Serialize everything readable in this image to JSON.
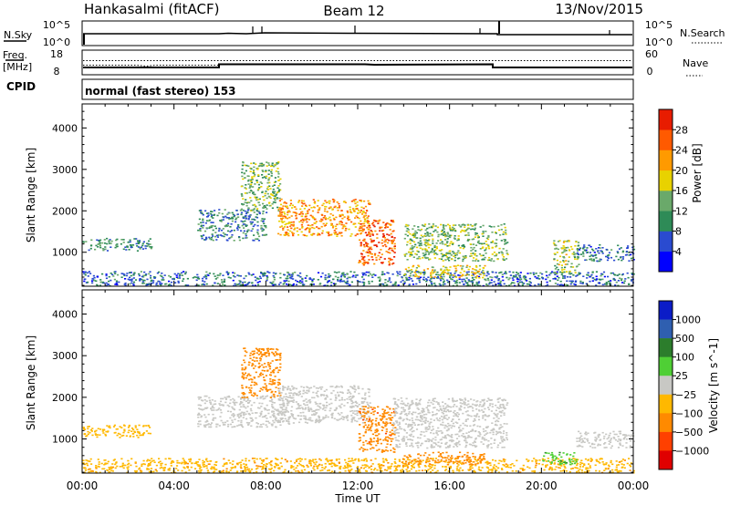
{
  "header": {
    "radar": "Hankasalmi (fitACF)",
    "beam": "Beam 12",
    "date": "13/Nov/2015"
  },
  "params": {
    "nsky_label": "N.Sky",
    "nsearch_label": "N.Search",
    "freq_label_1": "Freq.",
    "freq_label_2": "[MHz]",
    "nave_label": "Nave",
    "cpid_label": "CPID",
    "cpid_text": "normal (fast stereo) 153",
    "noise_ticks": [
      "10^5",
      "10^0"
    ],
    "freq_ticks": [
      "18",
      "8"
    ],
    "nave_ticks": [
      "60",
      "0"
    ]
  },
  "colors": {
    "power": [
      "#0000ff",
      "#2a4bd0",
      "#2e8b57",
      "#6aa96a",
      "#e8d200",
      "#ff9a00",
      "#ff5a00",
      "#e81c00"
    ],
    "velocity": [
      "#0b1cc7",
      "#2f5fb0",
      "#2c7d2c",
      "#4fcf35",
      "#c8c8c4",
      "#ffb800",
      "#ff8a00",
      "#ff4000",
      "#e00000"
    ]
  },
  "chart_data": [
    {
      "type": "heatmap",
      "title": "Power",
      "xlabel": "Time UT",
      "ylabel": "Slant Range [km]",
      "colorbar_label": "Power [dB]",
      "x_ticks": [
        "00:00",
        "04:00",
        "08:00",
        "12:00",
        "16:00",
        "20:00",
        "00:00"
      ],
      "y_ticks": [
        1000,
        2000,
        3000,
        4000
      ],
      "xlim": [
        0,
        24
      ],
      "ylim": [
        180,
        4580
      ],
      "colorbar_ticks": [
        "4",
        "8",
        "12",
        "16",
        "20",
        "24",
        "28"
      ],
      "clim": [
        0,
        32
      ],
      "regions": [
        {
          "t0": 0.0,
          "t1": 3.0,
          "r0": 1050,
          "r1": 1350,
          "value": 10
        },
        {
          "t0": 0.0,
          "t1": 24.0,
          "r0": 200,
          "r1": 550,
          "value": 8
        },
        {
          "t0": 5.0,
          "t1": 8.0,
          "r0": 1300,
          "r1": 2050,
          "value": 9
        },
        {
          "t0": 6.9,
          "t1": 8.6,
          "r0": 2000,
          "r1": 3200,
          "value": 14
        },
        {
          "t0": 8.5,
          "t1": 12.5,
          "r0": 1400,
          "r1": 2300,
          "value": 22
        },
        {
          "t0": 12.0,
          "t1": 13.6,
          "r0": 700,
          "r1": 1800,
          "value": 26
        },
        {
          "t0": 14.0,
          "t1": 18.5,
          "r0": 800,
          "r1": 1700,
          "value": 14
        },
        {
          "t0": 14.0,
          "t1": 17.5,
          "r0": 400,
          "r1": 700,
          "value": 18
        },
        {
          "t0": 20.5,
          "t1": 21.6,
          "r0": 500,
          "r1": 1300,
          "value": 16
        },
        {
          "t0": 21.5,
          "t1": 24.0,
          "r0": 800,
          "r1": 1200,
          "value": 8
        }
      ]
    },
    {
      "type": "heatmap",
      "title": "Velocity",
      "xlabel": "Time UT",
      "ylabel": "Slant Range [km]",
      "colorbar_label": "Velocity [m s^-1]",
      "x_ticks": [
        "00:00",
        "04:00",
        "08:00",
        "12:00",
        "16:00",
        "20:00",
        "00:00"
      ],
      "y_ticks": [
        1000,
        2000,
        3000,
        4000
      ],
      "xlim": [
        0,
        24
      ],
      "ylim": [
        180,
        4580
      ],
      "colorbar_ticks": [
        "1000",
        "500",
        "100",
        "25",
        "−25",
        "−100",
        "−500",
        "−1000"
      ],
      "regions": [
        {
          "t0": 0.0,
          "t1": 3.0,
          "r0": 1050,
          "r1": 1350,
          "value": -50
        },
        {
          "t0": 0.0,
          "t1": 24.0,
          "r0": 200,
          "r1": 550,
          "value": -80
        },
        {
          "t0": 5.0,
          "t1": 9.0,
          "r0": 1300,
          "r1": 2050,
          "value": 0
        },
        {
          "t0": 6.9,
          "t1": 8.6,
          "r0": 2000,
          "r1": 3200,
          "value": -300
        },
        {
          "t0": 8.5,
          "t1": 12.5,
          "r0": 1400,
          "r1": 2300,
          "value": 0
        },
        {
          "t0": 12.0,
          "t1": 13.6,
          "r0": 700,
          "r1": 1800,
          "value": -400
        },
        {
          "t0": 13.5,
          "t1": 18.5,
          "r0": 800,
          "r1": 2000,
          "value": 0
        },
        {
          "t0": 14.0,
          "t1": 17.5,
          "r0": 400,
          "r1": 700,
          "value": -200
        },
        {
          "t0": 20.0,
          "t1": 21.5,
          "r0": 400,
          "r1": 700,
          "value": 80
        },
        {
          "t0": 21.5,
          "t1": 24.0,
          "r0": 800,
          "r1": 1200,
          "value": 0
        }
      ]
    }
  ]
}
